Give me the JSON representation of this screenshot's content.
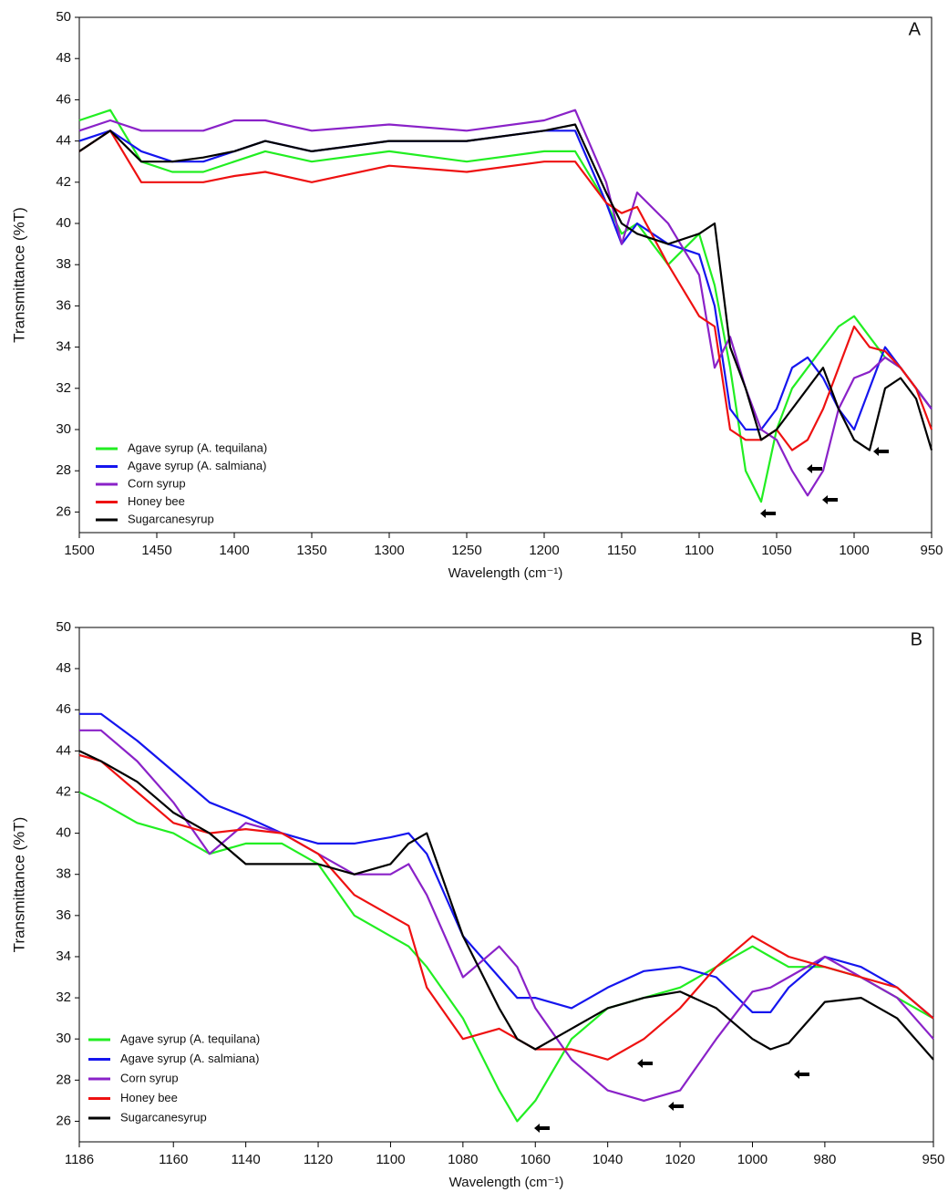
{
  "chart_data": [
    {
      "type": "line",
      "panel": "A",
      "xlabel": "Wavelength (cm⁻¹)",
      "ylabel": "Transmittance (%T)",
      "xlim": [
        1500,
        950
      ],
      "xticks": [
        1500,
        1450,
        1400,
        1350,
        1300,
        1250,
        1200,
        1150,
        1100,
        1050,
        1000,
        950
      ],
      "ylim": [
        25,
        50
      ],
      "yticks": [
        26,
        28,
        30,
        32,
        34,
        36,
        38,
        40,
        42,
        44,
        46,
        48,
        50
      ],
      "legend": "lower left",
      "x": [
        1500,
        1480,
        1460,
        1440,
        1420,
        1400,
        1380,
        1350,
        1300,
        1250,
        1200,
        1180,
        1160,
        1150,
        1140,
        1120,
        1100,
        1090,
        1080,
        1070,
        1060,
        1050,
        1040,
        1030,
        1020,
        1010,
        1000,
        990,
        980,
        970,
        960,
        950
      ],
      "series": [
        {
          "name": "Agave syrup (A. tequilana)",
          "color": "#22ee22",
          "values": [
            45,
            45.5,
            43,
            42.5,
            42.5,
            43,
            43.5,
            43,
            43.5,
            43,
            43.5,
            43.5,
            41,
            39.5,
            40,
            38,
            39.5,
            37,
            33,
            28,
            26.5,
            30,
            32,
            33,
            34,
            35,
            35.5,
            34.5,
            33.5,
            33,
            32,
            31
          ]
        },
        {
          "name": "Agave syrup (A. salmiana)",
          "color": "#1515ee",
          "values": [
            44,
            44.5,
            43.5,
            43,
            43,
            43.5,
            44,
            43.5,
            44,
            44,
            44.5,
            44.5,
            41,
            39,
            40,
            39,
            38.5,
            36,
            31,
            30,
            30,
            31,
            33,
            33.5,
            32.5,
            31,
            30,
            32,
            34,
            33,
            32,
            31
          ]
        },
        {
          "name": "Corn syrup",
          "color": "#8a22c8",
          "values": [
            44.5,
            45,
            44.5,
            44.5,
            44.5,
            45,
            45,
            44.5,
            44.8,
            44.5,
            45,
            45.5,
            42,
            39,
            41.5,
            40,
            37.5,
            33,
            34.5,
            32,
            30,
            29.5,
            28,
            26.8,
            28,
            31,
            32.5,
            32.8,
            33.5,
            33,
            32,
            31
          ]
        },
        {
          "name": "Honey  bee",
          "color": "#ee1111",
          "values": [
            43.5,
            44.5,
            42,
            42,
            42,
            42.3,
            42.5,
            42,
            42.8,
            42.5,
            43,
            43,
            41,
            40.5,
            40.8,
            38,
            35.5,
            35,
            30,
            29.5,
            29.5,
            30,
            29,
            29.5,
            31,
            33,
            35,
            34,
            33.8,
            33,
            32,
            30
          ]
        },
        {
          "name": "Sugarcanesyrup",
          "color": "#000000",
          "values": [
            43.5,
            44.5,
            43,
            43,
            43.2,
            43.5,
            44,
            43.5,
            44,
            44,
            44.5,
            44.8,
            41.5,
            40,
            39.5,
            39,
            39.5,
            40,
            34,
            32,
            29.5,
            30,
            31,
            32,
            33,
            31,
            29.5,
            29,
            32,
            32.5,
            31.5,
            29
          ]
        }
      ]
    },
    {
      "type": "line",
      "panel": "B",
      "xlabel": "Wavelength (cm⁻¹)",
      "ylabel": "Transmittance (%T)",
      "xlim": [
        1186,
        950
      ],
      "xticks": [
        1186,
        1160,
        1140,
        1120,
        1100,
        1080,
        1060,
        1040,
        1020,
        1000,
        980,
        950
      ],
      "ylim": [
        25,
        50
      ],
      "yticks": [
        26,
        28,
        30,
        32,
        34,
        36,
        38,
        40,
        42,
        44,
        46,
        48,
        50
      ],
      "legend": "lower left",
      "x": [
        1186,
        1180,
        1170,
        1160,
        1150,
        1140,
        1130,
        1120,
        1110,
        1100,
        1095,
        1090,
        1080,
        1070,
        1065,
        1060,
        1050,
        1040,
        1030,
        1020,
        1010,
        1000,
        995,
        990,
        980,
        970,
        960,
        950
      ],
      "series": [
        {
          "name": "Agave syrup (A. tequilana)",
          "color": "#22ee22",
          "values": [
            42,
            41.5,
            40.5,
            40,
            39,
            39.5,
            39.5,
            38.5,
            36,
            35,
            34.5,
            33.5,
            31,
            27.5,
            26,
            27,
            30,
            31.5,
            32,
            32.5,
            33.5,
            34.5,
            34,
            33.5,
            33.5,
            33,
            32,
            31
          ]
        },
        {
          "name": "Agave syrup (A. salmiana)",
          "color": "#1515ee",
          "values": [
            45.8,
            45.8,
            44.5,
            43,
            41.5,
            40.8,
            40,
            39.5,
            39.5,
            39.8,
            40,
            39,
            35,
            33,
            32,
            32,
            31.5,
            32.5,
            33.3,
            33.5,
            33,
            31.3,
            31.3,
            32.5,
            34,
            33.5,
            32.5,
            31
          ]
        },
        {
          "name": "Corn syrup",
          "color": "#8a22c8",
          "values": [
            45,
            45,
            43.5,
            41.5,
            39,
            40.5,
            40,
            39,
            38,
            38,
            38.5,
            37,
            33,
            34.5,
            33.5,
            31.5,
            29,
            27.5,
            27,
            27.5,
            30,
            32.3,
            32.5,
            33,
            34,
            33,
            32,
            30
          ]
        },
        {
          "name": "Honey  bee",
          "color": "#ee1111",
          "values": [
            43.8,
            43.5,
            42,
            40.5,
            40,
            40.2,
            40,
            39,
            37,
            36,
            35.5,
            32.5,
            30,
            30.5,
            30,
            29.5,
            29.5,
            29,
            30,
            31.5,
            33.5,
            35,
            34.5,
            34,
            33.5,
            33,
            32.5,
            31
          ]
        },
        {
          "name": "Sugarcanesyrup",
          "color": "#000000",
          "values": [
            44,
            43.5,
            42.5,
            41,
            40,
            38.5,
            38.5,
            38.5,
            38,
            38.5,
            39.5,
            40,
            35,
            31.5,
            30,
            29.5,
            30.5,
            31.5,
            32,
            32.3,
            31.5,
            30,
            29.5,
            29.8,
            31.8,
            32,
            31,
            29
          ]
        }
      ]
    }
  ]
}
